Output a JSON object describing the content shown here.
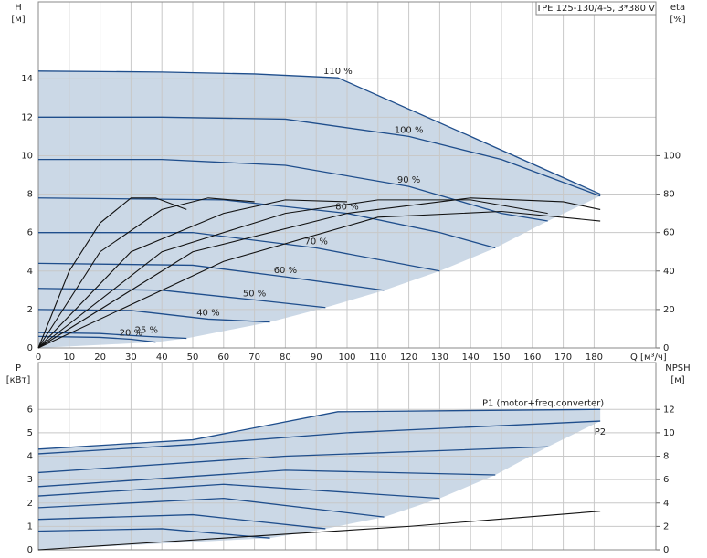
{
  "chart_data": [
    {
      "type": "line",
      "title": "TPE 125-130/4-S, 3*380 V",
      "ylabel": "H",
      "yunit": "[м]",
      "y2label": "eta",
      "y2unit": "[%]",
      "xlabel": "Q [м³/ч]",
      "xlim": [
        0,
        200
      ],
      "xticks": [
        0,
        10,
        20,
        30,
        40,
        50,
        60,
        70,
        80,
        90,
        100,
        110,
        120,
        130,
        140,
        150,
        160,
        170,
        180
      ],
      "xtick_labels": true,
      "ylim": [
        0,
        18
      ],
      "yticks": [
        0,
        2,
        4,
        6,
        8,
        10,
        12,
        14
      ],
      "y2lim": [
        0,
        180
      ],
      "y2ticks": [
        0,
        20,
        40,
        60,
        80,
        100
      ],
      "grid": true,
      "region_color": "#cbd8e6",
      "series": [
        {
          "name": "110 %",
          "color": "#1f4e8c",
          "x": [
            0,
            40,
            70,
            97,
            140,
            182
          ],
          "values": [
            14.4,
            14.35,
            14.25,
            14.05,
            11.0,
            8.0
          ]
        },
        {
          "name": "100 %",
          "color": "#1f4e8c",
          "x": [
            0,
            40,
            80,
            120,
            150,
            182
          ],
          "values": [
            12.0,
            12.0,
            11.9,
            11.0,
            9.8,
            7.9
          ]
        },
        {
          "name": "90 %",
          "color": "#1f4e8c",
          "x": [
            0,
            40,
            80,
            120,
            150,
            165
          ],
          "values": [
            9.8,
            9.8,
            9.5,
            8.4,
            7.0,
            6.6
          ]
        },
        {
          "name": "80 %",
          "color": "#1f4e8c",
          "x": [
            0,
            60,
            100,
            130,
            148
          ],
          "values": [
            7.8,
            7.7,
            7.0,
            6.0,
            5.2
          ]
        },
        {
          "name": "70 %",
          "color": "#1f4e8c",
          "x": [
            0,
            50,
            90,
            130
          ],
          "values": [
            6.0,
            6.0,
            5.2,
            4.0
          ]
        },
        {
          "name": "60 %",
          "color": "#1f4e8c",
          "x": [
            0,
            50,
            80,
            112
          ],
          "values": [
            4.4,
            4.3,
            3.7,
            3.0
          ]
        },
        {
          "name": "50 %",
          "color": "#1f4e8c",
          "x": [
            0,
            40,
            70,
            93
          ],
          "values": [
            3.1,
            3.0,
            2.5,
            2.1
          ]
        },
        {
          "name": "40 %",
          "color": "#1f4e8c",
          "x": [
            0,
            30,
            55,
            75
          ],
          "values": [
            2.0,
            1.95,
            1.5,
            1.35
          ]
        },
        {
          "name": "25 %",
          "color": "#1f4e8c",
          "x": [
            0,
            20,
            35,
            48
          ],
          "values": [
            0.8,
            0.75,
            0.6,
            0.5
          ]
        },
        {
          "name": "20 %",
          "color": "#1f4e8c",
          "x": [
            0,
            20,
            30,
            38
          ],
          "values": [
            0.6,
            0.55,
            0.45,
            0.3
          ]
        },
        {
          "color": "#111111",
          "axis": "y2",
          "x": [
            0,
            10,
            20,
            30,
            38,
            48
          ],
          "values": [
            0,
            40,
            65,
            78,
            78,
            72
          ]
        },
        {
          "color": "#111111",
          "axis": "y2",
          "x": [
            0,
            20,
            40,
            55,
            70
          ],
          "values": [
            0,
            50,
            72,
            78,
            76
          ]
        },
        {
          "color": "#111111",
          "axis": "y2",
          "x": [
            0,
            30,
            60,
            80,
            100
          ],
          "values": [
            0,
            50,
            70,
            77,
            76
          ]
        },
        {
          "color": "#111111",
          "axis": "y2",
          "x": [
            0,
            40,
            80,
            110,
            140,
            165
          ],
          "values": [
            0,
            50,
            70,
            77,
            77,
            70
          ]
        },
        {
          "color": "#111111",
          "axis": "y2",
          "x": [
            0,
            50,
            100,
            140,
            170,
            182
          ],
          "values": [
            0,
            50,
            70,
            78,
            76,
            72
          ]
        },
        {
          "color": "#111111",
          "axis": "y2",
          "x": [
            0,
            60,
            110,
            150,
            182
          ],
          "values": [
            0,
            45,
            68,
            71,
            66
          ]
        }
      ]
    },
    {
      "type": "line",
      "ylabel": "P",
      "yunit": "[кВт]",
      "y2label": "NPSH",
      "y2unit": "[м]",
      "xlim": [
        0,
        200
      ],
      "xticks": [
        0,
        10,
        20,
        30,
        40,
        50,
        60,
        70,
        80,
        90,
        100,
        110,
        120,
        130,
        140,
        150,
        160,
        170,
        180
      ],
      "xtick_labels": false,
      "ylim": [
        0,
        8
      ],
      "yticks": [
        0,
        1,
        2,
        3,
        4,
        5,
        6
      ],
      "y2lim": [
        0,
        16
      ],
      "y2ticks": [
        0,
        2,
        4,
        6,
        8,
        10,
        12
      ],
      "grid": true,
      "region_color": "#cbd8e6",
      "series": [
        {
          "name": "P1 (motor+freq.converter)",
          "color": "#1f4e8c",
          "x": [
            0,
            50,
            97,
            182
          ],
          "values": [
            4.3,
            4.7,
            5.9,
            6.0
          ]
        },
        {
          "name": "P2",
          "color": "#1f4e8c",
          "x": [
            0,
            50,
            100,
            182
          ],
          "values": [
            4.1,
            4.5,
            5.0,
            5.5
          ]
        },
        {
          "color": "#1f4e8c",
          "x": [
            0,
            80,
            165
          ],
          "values": [
            3.3,
            4.0,
            4.4
          ]
        },
        {
          "color": "#1f4e8c",
          "x": [
            0,
            80,
            148
          ],
          "values": [
            2.7,
            3.4,
            3.2
          ]
        },
        {
          "color": "#1f4e8c",
          "x": [
            0,
            60,
            130
          ],
          "values": [
            2.3,
            2.8,
            2.2
          ]
        },
        {
          "color": "#1f4e8c",
          "x": [
            0,
            60,
            112
          ],
          "values": [
            1.8,
            2.2,
            1.4
          ]
        },
        {
          "color": "#1f4e8c",
          "x": [
            0,
            50,
            93
          ],
          "values": [
            1.3,
            1.5,
            0.9
          ]
        },
        {
          "color": "#1f4e8c",
          "x": [
            0,
            40,
            75
          ],
          "values": [
            0.8,
            0.9,
            0.5
          ]
        },
        {
          "color": "#111111",
          "axis": "y2",
          "x": [
            0,
            60,
            120,
            182
          ],
          "values": [
            0,
            1.0,
            2.0,
            3.3
          ]
        }
      ]
    }
  ]
}
